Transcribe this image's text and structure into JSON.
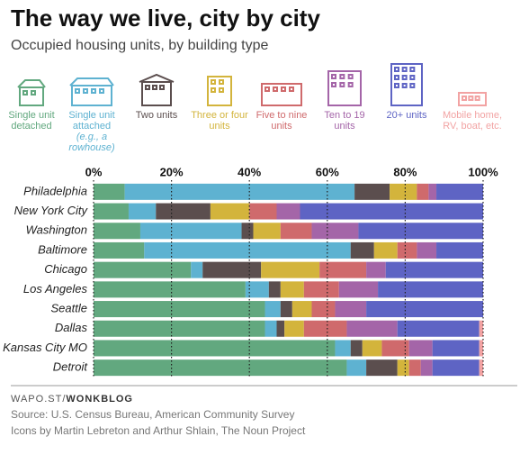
{
  "chart_data": {
    "type": "stacked-bar-horizontal",
    "title": "The way we live, city by city",
    "subtitle": "Occupied housing units, by building type",
    "categories": [
      "Philadelphia",
      "New York City",
      "Washington",
      "Baltimore",
      "Chicago",
      "Los Angeles",
      "Seattle",
      "Dallas",
      "Kansas City MO",
      "Detroit"
    ],
    "series": [
      {
        "name": "Single unit detached",
        "color": "#62a87f",
        "values": [
          8,
          9,
          12,
          13,
          25,
          39,
          44,
          44,
          62,
          65
        ]
      },
      {
        "name": "Single unit attached",
        "note": "(e.g., a rowhouse)",
        "color": "#5eb2d1",
        "values": [
          59,
          7,
          26,
          53,
          3,
          6,
          4,
          3,
          4,
          5
        ]
      },
      {
        "name": "Two units",
        "color": "#5b4e4e",
        "values": [
          9,
          14,
          3,
          6,
          15,
          3,
          3,
          2,
          3,
          8
        ]
      },
      {
        "name": "Three or four units",
        "color": "#d3b43c",
        "values": [
          7,
          10,
          7,
          6,
          15,
          6,
          5,
          5,
          5,
          3
        ]
      },
      {
        "name": "Five to nine units",
        "color": "#cf6a6c",
        "values": [
          3,
          7,
          8,
          5,
          12,
          9,
          6,
          11,
          7,
          3
        ]
      },
      {
        "name": "Ten to 19 units",
        "color": "#a465a8",
        "values": [
          2,
          6,
          12,
          5,
          5,
          10,
          8,
          13,
          6,
          3
        ]
      },
      {
        "name": "20+ units",
        "color": "#5e64c4",
        "values": [
          12,
          47,
          32,
          12,
          25,
          27,
          30,
          21,
          12,
          12
        ]
      },
      {
        "name": "Mobile home, RV, boat, etc.",
        "color": "#f2a3a3",
        "values": [
          0,
          0,
          0,
          0,
          0,
          0,
          0,
          1,
          1,
          1
        ]
      }
    ],
    "xlim": [
      0,
      100
    ],
    "xticks": [
      {
        "value": 0,
        "label": "0%"
      },
      {
        "value": 20,
        "label": "20%"
      },
      {
        "value": 40,
        "label": "40%"
      },
      {
        "value": 60,
        "label": "60%"
      },
      {
        "value": 80,
        "label": "80%"
      },
      {
        "value": 100,
        "label": "100%"
      }
    ],
    "grid": true
  },
  "footer": {
    "site_prefix": "WAPO.ST/",
    "site_bold": "WONKBLOG",
    "source": "Source: U.S. Census Bureau, American Community Survey",
    "credits": "Icons by Martin Lebreton and Arthur Shlain, The Noun Project"
  }
}
